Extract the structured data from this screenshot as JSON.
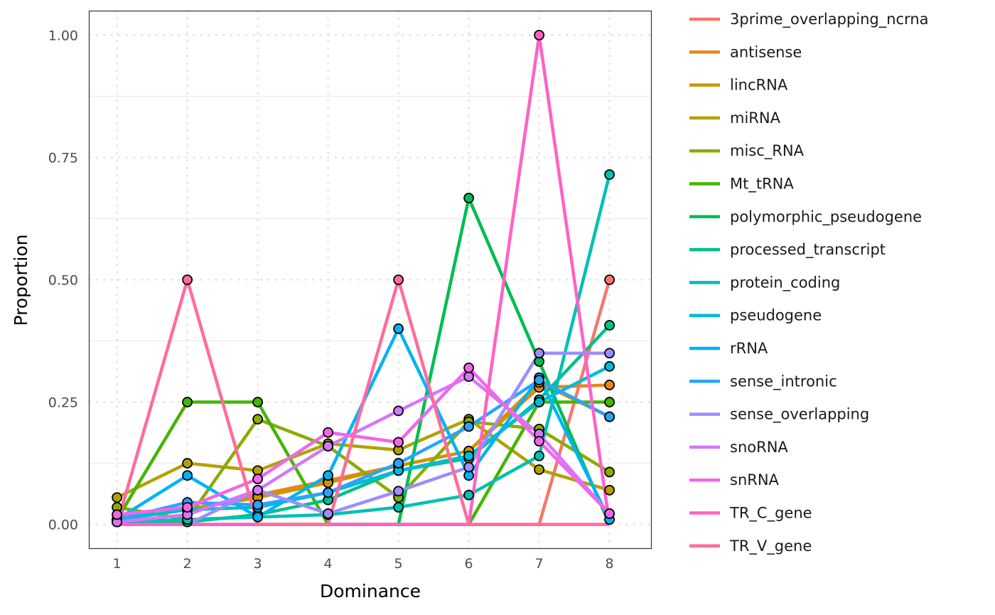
{
  "chart_data": {
    "type": "line",
    "title": "",
    "xlabel": "Dominance",
    "ylabel": "Proportion",
    "x": [
      1,
      2,
      3,
      4,
      5,
      6,
      7,
      8
    ],
    "xlim": [
      0.6,
      8.6
    ],
    "ylim": [
      -0.05,
      1.05
    ],
    "yticks": [
      0,
      0.25,
      0.5,
      0.75,
      1.0
    ],
    "ytick_labels": [
      "0.00",
      "0.25",
      "0.50",
      "0.75",
      "1.00"
    ],
    "xtick_labels": [
      "1",
      "2",
      "3",
      "4",
      "5",
      "6",
      "7",
      "8"
    ],
    "grid": true,
    "legend_position": "right",
    "series": [
      {
        "name": "3prime_overlapping_ncrna",
        "color": "#F8766D",
        "values": [
          0,
          0,
          0,
          0,
          0,
          0,
          0,
          0.5
        ]
      },
      {
        "name": "antisense",
        "color": "#E7851E",
        "values": [
          0.01,
          0.03,
          0.06,
          0.09,
          0.12,
          0.15,
          0.28,
          0.285
        ]
      },
      {
        "name": "lincRNA",
        "color": "#D09400",
        "values": [
          0.01,
          0.03,
          0.055,
          0.085,
          0.12,
          0.15,
          0.29,
          0.22
        ]
      },
      {
        "name": "miRNA",
        "color": "#B2A100",
        "values": [
          0.055,
          0.125,
          0.11,
          0.165,
          0.152,
          0.215,
          0.112,
          0.07
        ]
      },
      {
        "name": "misc_RNA",
        "color": "#89AC00",
        "values": [
          0.035,
          0.01,
          0.215,
          0.16,
          0.055,
          0.21,
          0.195,
          0.107
        ]
      },
      {
        "name": "Mt_tRNA",
        "color": "#45B500",
        "values": [
          0.01,
          0.25,
          0.25,
          0,
          0,
          0,
          0.25,
          0.25
        ]
      },
      {
        "name": "polymorphic_pseudogene",
        "color": "#00BC51",
        "values": [
          0,
          0,
          0,
          0,
          0,
          0.667,
          0.333,
          0
        ]
      },
      {
        "name": "processed_transcript",
        "color": "#00C087",
        "values": [
          0.005,
          0.005,
          0.02,
          0.05,
          0.11,
          0.135,
          0.255,
          0.407
        ]
      },
      {
        "name": "protein_coding",
        "color": "#00C0B2",
        "values": [
          0.005,
          0.01,
          0.015,
          0.02,
          0.035,
          0.06,
          0.14,
          0.715
        ]
      },
      {
        "name": "pseudogene",
        "color": "#00BCD6",
        "values": [
          0.01,
          0.03,
          0.035,
          0.065,
          0.11,
          0.14,
          0.25,
          0.323
        ]
      },
      {
        "name": "rRNA",
        "color": "#00B3F2",
        "values": [
          0.01,
          0.1,
          0.015,
          0.1,
          0.4,
          0.1,
          0.3,
          0.01
        ]
      },
      {
        "name": "sense_intronic",
        "color": "#29A3FF",
        "values": [
          0.01,
          0.045,
          0.04,
          0.065,
          0.125,
          0.2,
          0.295,
          0.22
        ]
      },
      {
        "name": "sense_overlapping",
        "color": "#9C8DFF",
        "values": [
          0,
          0,
          0.07,
          0.022,
          0.068,
          0.117,
          0.35,
          0.35
        ]
      },
      {
        "name": "snoRNA",
        "color": "#D277FF",
        "values": [
          0.005,
          0.02,
          0.07,
          0.16,
          0.232,
          0.302,
          0.185,
          0.022
        ]
      },
      {
        "name": "snRNA",
        "color": "#F166E8",
        "values": [
          0.02,
          0.035,
          0.093,
          0.188,
          0.168,
          0.32,
          0.17,
          0.022
        ]
      },
      {
        "name": "TR_C_gene",
        "color": "#FF61C7",
        "values": [
          0,
          0,
          0,
          0,
          0,
          0,
          1.0,
          0
        ]
      },
      {
        "name": "TR_V_gene",
        "color": "#FF6C9C",
        "values": [
          0,
          0.5,
          0,
          0,
          0.5,
          0,
          0,
          0
        ]
      }
    ]
  }
}
